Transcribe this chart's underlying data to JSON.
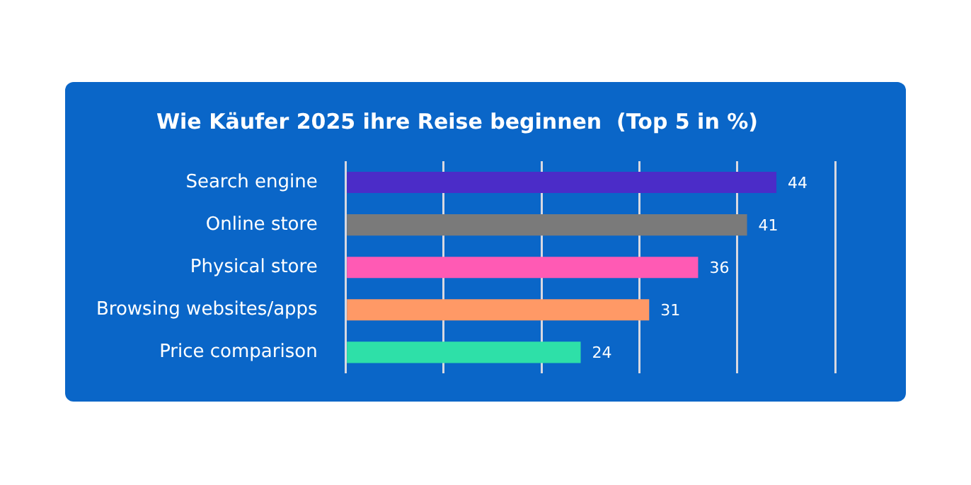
{
  "chart_data": {
    "type": "bar",
    "orientation": "horizontal",
    "title": "Wie Käufer 2025 ihre Reise beginnen  (Top 5 in %)",
    "categories": [
      "Search engine",
      "Online store",
      "Physical store",
      "Browsing websites/apps",
      "Price comparison"
    ],
    "values": [
      44,
      41,
      36,
      31,
      24
    ],
    "colors": [
      "#4b2cc8",
      "#7a7a7a",
      "#ff5ab4",
      "#ff9966",
      "#2ee0a8"
    ],
    "xlim": [
      0,
      50
    ],
    "xticks": [
      {
        "value": 0,
        "label": null
      },
      {
        "value": 10,
        "label": null
      },
      {
        "value": 20,
        "label": null
      },
      {
        "value": 30,
        "label": null
      },
      {
        "value": 40,
        "label": null
      },
      {
        "value": 50,
        "label": null
      }
    ],
    "tick_labels": "y",
    "grid": "x",
    "data_labels": true,
    "legend": false
  }
}
